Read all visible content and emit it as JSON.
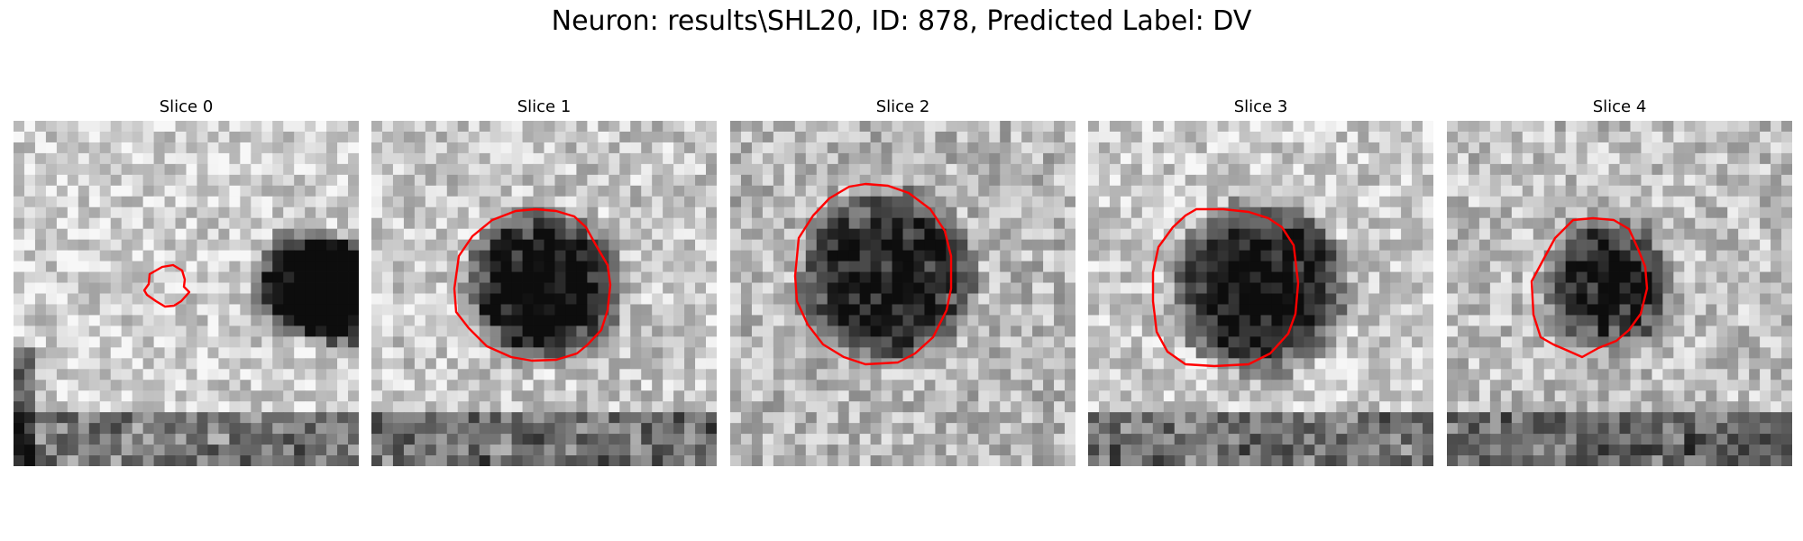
{
  "figure": {
    "title": "Neuron: results\\SHL20, ID: 878, Predicted Label: DV",
    "contour_color": "#ff0000",
    "slices": [
      {
        "label": "Slice 0"
      },
      {
        "label": "Slice 1"
      },
      {
        "label": "Slice 2"
      },
      {
        "label": "Slice 3"
      },
      {
        "label": "Slice 4"
      }
    ]
  }
}
